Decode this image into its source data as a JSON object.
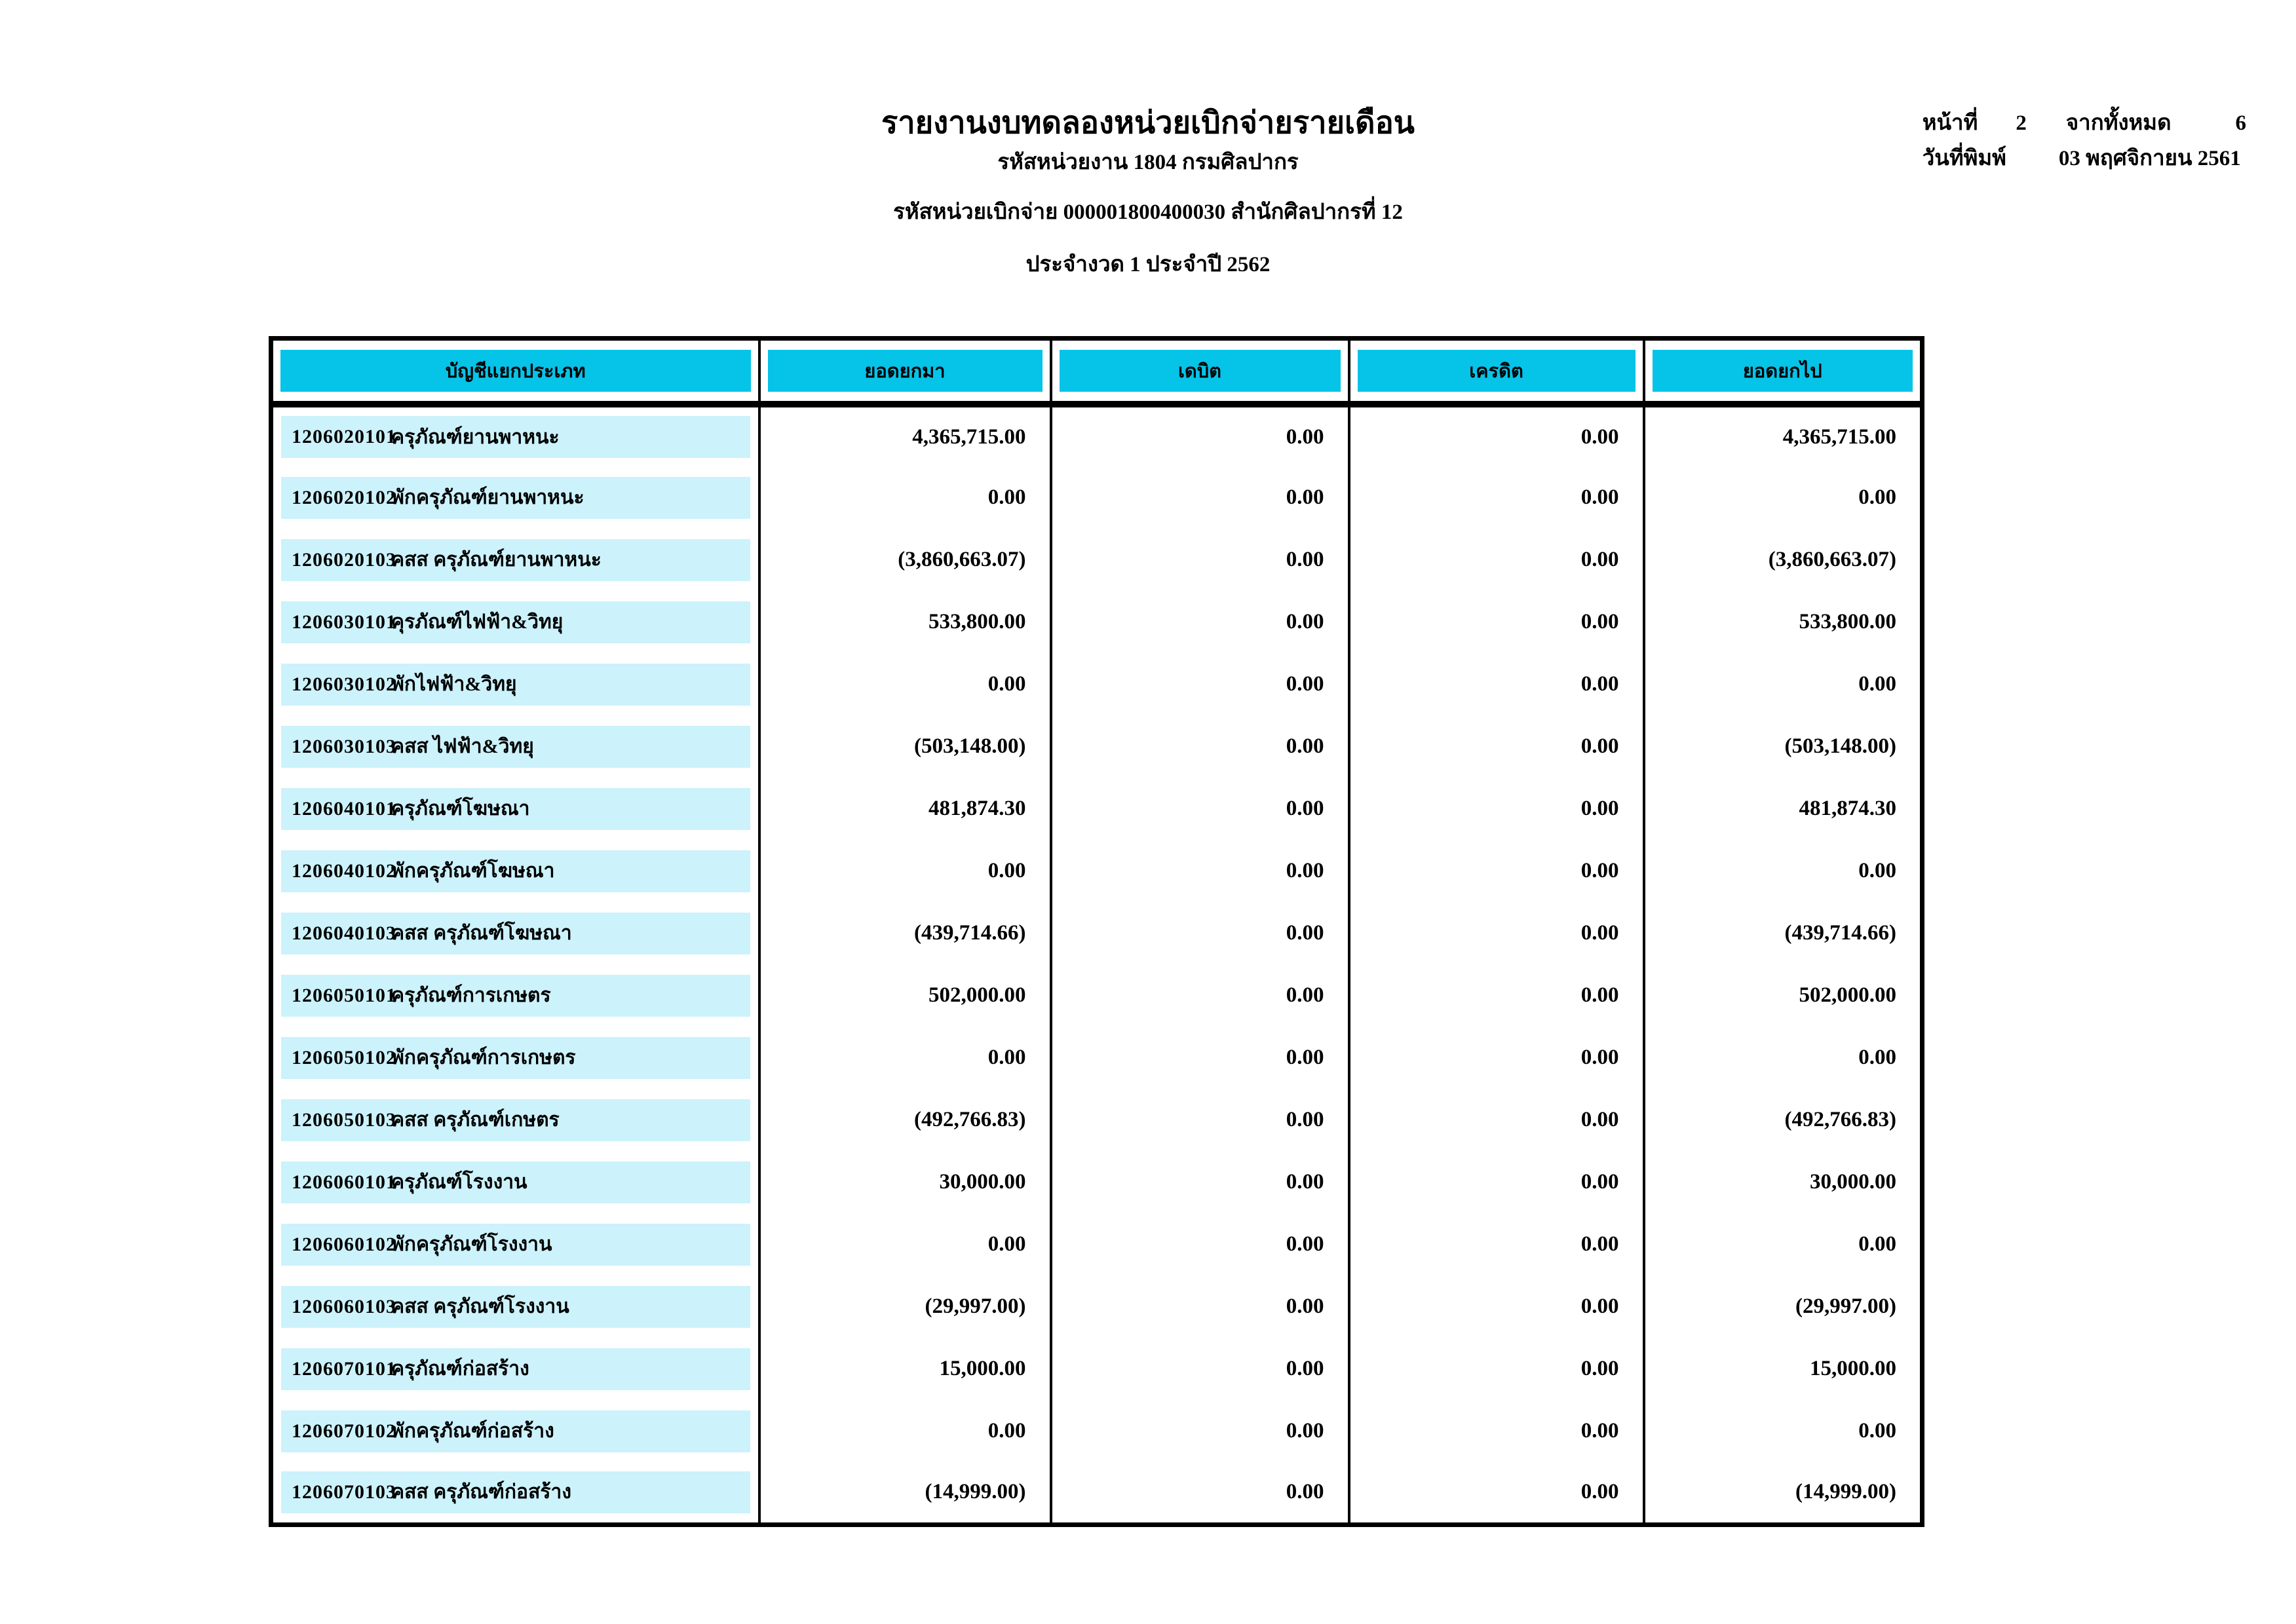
{
  "colors": {
    "header_fill": "#06c3e8",
    "row_fill": "#ccf2fb"
  },
  "page_header": {
    "title": "รายงานงบทดลองหน่วยเบิกจ่ายรายเดือน",
    "agency_line": "รหัสหน่วยงาน 1804 กรมศิลปากร",
    "unit_line": "รหัสหน่วยเบิกจ่าย 000001800400030 สำนักศิลปากรที่ 12",
    "period_line": "ประจำงวด 1 ประจำปี 2562",
    "page_label": "หน้าที่",
    "page_number": "2",
    "of_total_label": "จากทั้งหมด",
    "total_pages": "6",
    "print_date_label": "วันที่พิมพ์",
    "print_date": "03 พฤศจิกายน 2561"
  },
  "table": {
    "columns": [
      "บัญชีแยกประเภท",
      "ยอดยกมา",
      "เดบิต",
      "เครดิต",
      "ยอดยกไป"
    ],
    "rows": [
      {
        "code": "1206020101",
        "name": "ครุภัณฑ์ยานพาหนะ",
        "opening": "4,365,715.00",
        "debit": "0.00",
        "credit": "0.00",
        "closing": "4,365,715.00"
      },
      {
        "code": "1206020102",
        "name": "พักครุภัณฑ์ยานพาหนะ",
        "opening": "0.00",
        "debit": "0.00",
        "credit": "0.00",
        "closing": "0.00"
      },
      {
        "code": "1206020103",
        "name": "คสส ครุภัณฑ์ยานพาหนะ",
        "opening": "(3,860,663.07)",
        "debit": "0.00",
        "credit": "0.00",
        "closing": "(3,860,663.07)"
      },
      {
        "code": "1206030101",
        "name": "คุรภัณฑ์ไฟฟ้า&วิทยุ",
        "opening": "533,800.00",
        "debit": "0.00",
        "credit": "0.00",
        "closing": "533,800.00"
      },
      {
        "code": "1206030102",
        "name": "พักไฟฟ้า&วิทยุ",
        "opening": "0.00",
        "debit": "0.00",
        "credit": "0.00",
        "closing": "0.00"
      },
      {
        "code": "1206030103",
        "name": "คสส ไฟฟ้า&วิทยุ",
        "opening": "(503,148.00)",
        "debit": "0.00",
        "credit": "0.00",
        "closing": "(503,148.00)"
      },
      {
        "code": "1206040101",
        "name": "ครุภัณฑ์โฆษณา",
        "opening": "481,874.30",
        "debit": "0.00",
        "credit": "0.00",
        "closing": "481,874.30"
      },
      {
        "code": "1206040102",
        "name": "พักครุภัณฑ์โฆษณา",
        "opening": "0.00",
        "debit": "0.00",
        "credit": "0.00",
        "closing": "0.00"
      },
      {
        "code": "1206040103",
        "name": "คสส ครุภัณฑ์โฆษณา",
        "opening": "(439,714.66)",
        "debit": "0.00",
        "credit": "0.00",
        "closing": "(439,714.66)"
      },
      {
        "code": "1206050101",
        "name": "ครุภัณฑ์การเกษตร",
        "opening": "502,000.00",
        "debit": "0.00",
        "credit": "0.00",
        "closing": "502,000.00"
      },
      {
        "code": "1206050102",
        "name": "พักครุภัณฑ์การเกษตร",
        "opening": "0.00",
        "debit": "0.00",
        "credit": "0.00",
        "closing": "0.00"
      },
      {
        "code": "1206050103",
        "name": "คสส ครุภัณฑ์เกษตร",
        "opening": "(492,766.83)",
        "debit": "0.00",
        "credit": "0.00",
        "closing": "(492,766.83)"
      },
      {
        "code": "1206060101",
        "name": "ครุภัณฑ์โรงงาน",
        "opening": "30,000.00",
        "debit": "0.00",
        "credit": "0.00",
        "closing": "30,000.00"
      },
      {
        "code": "1206060102",
        "name": "พักครุภัณฑ์โรงงาน",
        "opening": "0.00",
        "debit": "0.00",
        "credit": "0.00",
        "closing": "0.00"
      },
      {
        "code": "1206060103",
        "name": "คสส ครุภัณฑ์โรงงาน",
        "opening": "(29,997.00)",
        "debit": "0.00",
        "credit": "0.00",
        "closing": "(29,997.00)"
      },
      {
        "code": "1206070101",
        "name": "ครุภัณฑ์ก่อสร้าง",
        "opening": "15,000.00",
        "debit": "0.00",
        "credit": "0.00",
        "closing": "15,000.00"
      },
      {
        "code": "1206070102",
        "name": "พักครุภัณฑ์ก่อสร้าง",
        "opening": "0.00",
        "debit": "0.00",
        "credit": "0.00",
        "closing": "0.00"
      },
      {
        "code": "1206070103",
        "name": "คสส ครุภัณฑ์ก่อสร้าง",
        "opening": "(14,999.00)",
        "debit": "0.00",
        "credit": "0.00",
        "closing": "(14,999.00)"
      }
    ]
  }
}
